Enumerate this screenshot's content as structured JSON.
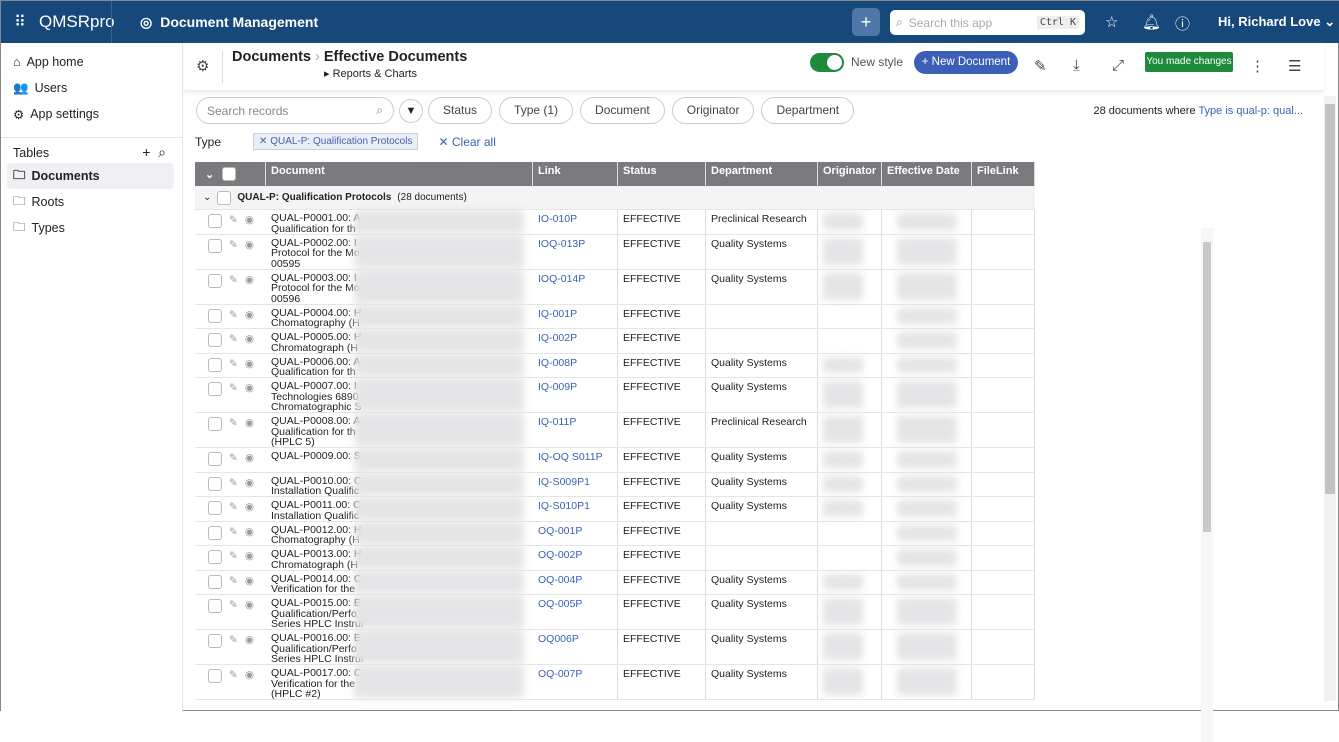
{
  "topbar": {
    "app": "QMSRpro",
    "module": "Document Management",
    "search_placeholder": "Search this app",
    "shortcut": "Ctrl K",
    "user": "Hi, Richard Love"
  },
  "sidebar": {
    "items": [
      {
        "label": "App home",
        "icon": "⌂"
      },
      {
        "label": "Users",
        "icon": "👥"
      },
      {
        "label": "App settings",
        "icon": "⚙"
      }
    ],
    "tables_label": "Tables",
    "tables": [
      {
        "label": "Documents",
        "active": true
      },
      {
        "label": "Roots"
      },
      {
        "label": "Types"
      }
    ]
  },
  "header": {
    "parent": "Documents",
    "title": "Effective Documents",
    "sub": "Reports & Charts",
    "toggle_label": "New style",
    "toggle_on": true,
    "new_button": "+ New Document",
    "changes_badge": "You made changes"
  },
  "filters": {
    "search_placeholder": "Search records",
    "buttons": [
      "Status",
      "Type (1)",
      "Document",
      "Originator",
      "Department"
    ],
    "count_text": "28 documents where ",
    "count_link": "Type is qual-p: qual...",
    "type_label": "Type",
    "chip": "QUAL-P: Qualification Protocols",
    "clear": "Clear all"
  },
  "table": {
    "columns": [
      "Document",
      "Link",
      "Status",
      "Department",
      "Originator",
      "Effective Date",
      "FileLink"
    ],
    "group": {
      "label": "QUAL-P: Qualification Protocols",
      "count": "(28 documents)"
    },
    "rows": [
      {
        "doc": [
          "QUAL-P0001.00: A",
          "Qualification for th"
        ],
        "link": "IO-010P",
        "status": "EFFECTIVE",
        "dept": "Preclinical Research",
        "orig": true
      },
      {
        "doc": [
          "QUAL-P0002.00: I",
          "Protocol for the Mo",
          "00595"
        ],
        "link": "IOQ-013P",
        "status": "EFFECTIVE",
        "dept": "Quality Systems",
        "orig": true
      },
      {
        "doc": [
          "QUAL-P0003.00: I",
          "Protocol for the Mo",
          "00596"
        ],
        "link": "IOQ-014P",
        "status": "EFFECTIVE",
        "dept": "Quality Systems",
        "orig": true
      },
      {
        "doc": [
          "QUAL-P0004.00: H",
          "Chomatography (H"
        ],
        "link": "IQ-001P",
        "status": "EFFECTIVE",
        "dept": "",
        "orig": false
      },
      {
        "doc": [
          "QUAL-P0005.00: H",
          "Chromatograph (H"
        ],
        "link": "IQ-002P",
        "status": "EFFECTIVE",
        "dept": "",
        "orig": false
      },
      {
        "doc": [
          "QUAL-P0006.00: A",
          "Qualification for th"
        ],
        "link": "IQ-008P",
        "status": "EFFECTIVE",
        "dept": "Quality Systems",
        "orig": true
      },
      {
        "doc": [
          "QUAL-P0007.00: I",
          "Technologies 6890",
          "Chromatographic S"
        ],
        "link": "IQ-009P",
        "status": "EFFECTIVE",
        "dept": "Quality Systems",
        "orig": true
      },
      {
        "doc": [
          "QUAL-P0008.00: A",
          "Qualification for th",
          "(HPLC 5)"
        ],
        "link": "IQ-011P",
        "status": "EFFECTIVE",
        "dept": "Preclinical Research",
        "orig": true
      },
      {
        "doc": [
          "QUAL-P0009.00: S"
        ],
        "link": "IQ-OQ S011P",
        "status": "EFFECTIVE",
        "dept": "Quality Systems",
        "orig": true
      },
      {
        "doc": [
          "QUAL-P0010.00: C",
          "Installation Qualific"
        ],
        "link": "IQ-S009P1",
        "status": "EFFECTIVE",
        "dept": "Quality Systems",
        "orig": true
      },
      {
        "doc": [
          "QUAL-P0011.00: C",
          "Installation Qualific"
        ],
        "link": "IQ-S010P1",
        "status": "EFFECTIVE",
        "dept": "Quality Systems",
        "orig": true
      },
      {
        "doc": [
          "QUAL-P0012.00: H",
          "Chomatography (H"
        ],
        "link": "OQ-001P",
        "status": "EFFECTIVE",
        "dept": "",
        "orig": false
      },
      {
        "doc": [
          "QUAL-P0013.00: H",
          "Chromatograph (H"
        ],
        "link": "OQ-002P",
        "status": "EFFECTIVE",
        "dept": "",
        "orig": false
      },
      {
        "doc": [
          "QUAL-P0014.00: C",
          "Verification for the"
        ],
        "link": "OQ-004P",
        "status": "EFFECTIVE",
        "dept": "Quality Systems",
        "orig": true
      },
      {
        "doc": [
          "QUAL-P0015.00: E",
          "Qualification/Perfo",
          "Series HPLC Instrur"
        ],
        "link": "OQ-005P",
        "status": "EFFECTIVE",
        "dept": "Quality Systems",
        "orig": true
      },
      {
        "doc": [
          "QUAL-P0016.00: E",
          "Qualification/Perfo",
          "Series HPLC Instrur"
        ],
        "link": "OQ006P",
        "status": "EFFECTIVE",
        "dept": "Quality Systems",
        "orig": true
      },
      {
        "doc": [
          "QUAL-P0017.00: C",
          "Verification for the",
          "(HPLC #2)"
        ],
        "link": "OQ-007P",
        "status": "EFFECTIVE",
        "dept": "Quality Systems",
        "orig": true
      }
    ]
  },
  "colors": {
    "topbar": "#17487c",
    "accent": "#3b5fb5",
    "success": "#1e8a3c"
  }
}
